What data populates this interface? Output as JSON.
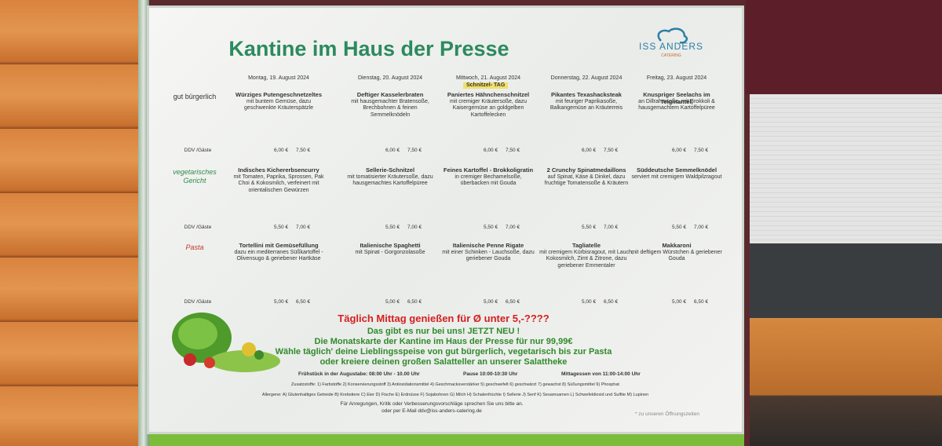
{
  "header": {
    "title": "Kantine im Haus der Presse",
    "logo": "ISS ANDERS",
    "logo_sub": "CATERING"
  },
  "days": [
    "Montag, 19. August 2024",
    "Dienstag, 20. August 2024",
    "Mittwoch, 21. August 2024",
    "Donnerstag, 22. August 2024",
    "Freitag, 23. August 2024"
  ],
  "badge": "Schnitzel- TAG",
  "sections": [
    {
      "label": "gut bürgerlich",
      "price_label": "DDV /Gäste",
      "dishes": [
        {
          "name": "Würziges Putengeschnetzeltes",
          "desc": "mit buntem Gemüse, dazu geschwenkte Kräuterspätzle",
          "prices": [
            "6,00 €",
            "7,50 €"
          ]
        },
        {
          "name": "Deftiger Kasselerbraten",
          "desc": "mit hausgemachter Bratensoße, Brechbohnen & feinen Semmelknödeln",
          "prices": [
            "6,00 €",
            "7,50 €"
          ]
        },
        {
          "name": "Paniertes Hähnchenschnitzel",
          "desc": "mit cremiger Kräutersoße, dazu Kaisergemüse an goldgelben Kartoffelecken",
          "prices": [
            "6,00 €",
            "7,50 €"
          ]
        },
        {
          "name": "Pikantes Texashacksteak",
          "desc": "mit feuriger Paprikasoße, Balkangemüse an Kräuterreis",
          "prices": [
            "6,00 €",
            "7,50 €"
          ]
        },
        {
          "name": "Knuspriger Seelachs im Teigmantel,",
          "desc": "an Dillrahmsoße, mit Brokkoli & hausgemachtem Kartoffelpüree",
          "prices": [
            "6,00 €",
            "7,50 €"
          ]
        }
      ]
    },
    {
      "label": "vegetarisches Gericht",
      "price_label": "DDV /Gäste",
      "dishes": [
        {
          "name": "Indisches Kichererbsencurry",
          "desc": "mit Tomaten, Paprika, Sprossen, Pak Choi & Kokosmilch, verfeinert mit orientalischen Gewürzen",
          "prices": [
            "5,50 €",
            "7,00 €"
          ]
        },
        {
          "name": "Sellerie-Schnitzel",
          "desc": "mit tomatisierter Kräutersoße, dazu hausgemachtes Kartoffelpüree",
          "prices": [
            "5,50 €",
            "7,00 €"
          ]
        },
        {
          "name": "Feines Kartoffel - Brokkoligratin",
          "desc": "in cremiger Bechamelsoße, überbacken mit Gouda",
          "prices": [
            "5,50 €",
            "7,00 €"
          ]
        },
        {
          "name": "2 Crunchy Spinatmedaillons",
          "desc": "auf Spinat, Käse & Dinkel, dazu fruchtige Tomatensoße & Kräutern",
          "prices": [
            "5,50 €",
            "7,00 €"
          ]
        },
        {
          "name": "Süddeutsche Semmelknödel",
          "desc": "serviert mit cremigem Waldpilzragout",
          "prices": [
            "5,50 €",
            "7,00 €"
          ]
        }
      ]
    },
    {
      "label": "Pasta",
      "price_label": "DDV /Gäste",
      "dishes": [
        {
          "name": "Tortellini mit Gemüsefüllung",
          "desc": "dazu ein mediterranes Süßkartoffel - Olivensugo & geriebener Hartkäse",
          "prices": [
            "5,00 €",
            "6,50 €"
          ]
        },
        {
          "name": "Italienische Spaghetti",
          "desc": "mit Spinat - Gorgonzolasoße",
          "prices": [
            "5,00 €",
            "6,50 €"
          ]
        },
        {
          "name": "Italienische Penne Rigate",
          "desc": "mit einer Schinken - Lauchsoße, dazu geriebener Gouda",
          "prices": [
            "5,00 €",
            "6,50 €"
          ]
        },
        {
          "name": "Tagliatelle",
          "desc": "mit cremigem Kürbisragout, mit Lauch, Kokosmilch, Zimt & Zitrone, dazu geriebener Emmentaler",
          "prices": [
            "5,00 €",
            "6,50 €"
          ]
        },
        {
          "name": "Makkaroni",
          "desc": "mit deftigem Würstchen & geriebener Gouda",
          "prices": [
            "5,00 €",
            "6,50 €"
          ]
        }
      ]
    }
  ],
  "promo": {
    "headline": "Täglich Mittag genießen für Ø unter 5,-????",
    "lines": [
      "Das gibt es nur bei uns! JETZT NEU !",
      "Die Monatskarte der Kantine im Haus der Presse für nur 99,99€",
      "Wähle täglich' deine Lieblingsspeise von gut bürgerlich, vegetarisch bis zur Pasta",
      "oder kreiere deinen großen Salatteller an unserer Salattheke"
    ]
  },
  "hours": [
    "Frühstück in der Augustabe: 08:00 Uhr - 10.00 Uhr",
    "Pause 10:00-10:30 Uhr",
    "Mittagessen von 11:00-14:00 Uhr"
  ],
  "footer": {
    "additives": "Zusatzstoffe: 1) Farbstoffe 2) Konservierungsstoff 3) Antioxidationsmittel 4) Geschmacksverstärker 5) geschwefelt 6) geschwärzt 7) gewachst 8) Süßungsmittel 9) Phosphat",
    "allergens": "Allergene: A) Glutenhaltiges Getreide B) Krebstiere C) Eier D) Fische E) Erdnüsse F) Sojabohnen G) Milch H) Schalenfrüchte I) Sellerie J) Senf K) Sesamsamen L) Schwefeldioxid und Sulfite M) Lupinen",
    "contact": "Für Anregungen, Kritik oder Verbesserungsvorschläge sprechen Sie uns bitte an.",
    "email": "oder per E-Mail ddv@iss-anders-catering.de",
    "note": "* zu unseren Öffnungszeiten"
  }
}
